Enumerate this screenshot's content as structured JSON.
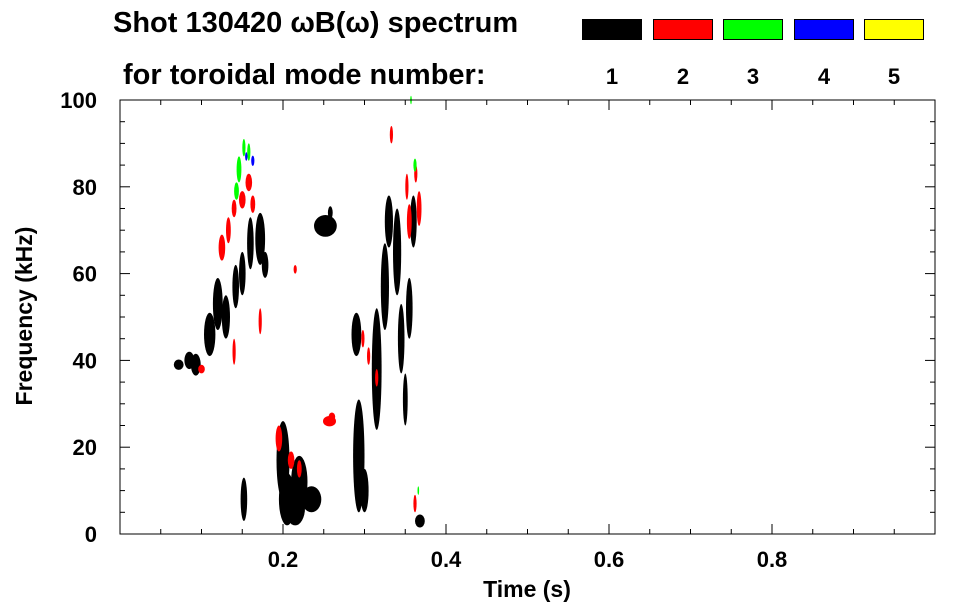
{
  "chart_data": {
    "type": "scatter",
    "title_line1": "Shot 130420 ωB(ω) spectrum",
    "title_line2": "for toroidal mode number:",
    "xlabel": "Time (s)",
    "ylabel": "Frequency (kHz)",
    "xlim": [
      0.0,
      1.0
    ],
    "ylim": [
      0,
      100
    ],
    "x_ticks": [
      0.2,
      0.4,
      0.6,
      0.8
    ],
    "x_tick_labels": [
      "0.2",
      "0.4",
      "0.6",
      "0.8"
    ],
    "y_ticks": [
      0,
      20,
      40,
      60,
      80,
      100
    ],
    "y_tick_labels": [
      "0",
      "20",
      "40",
      "60",
      "80",
      "100"
    ],
    "legend": [
      {
        "label": "1",
        "color": "#000000"
      },
      {
        "label": "2",
        "color": "#ff0000"
      },
      {
        "label": "3",
        "color": "#00ff00"
      },
      {
        "label": "4",
        "color": "#0000ff"
      },
      {
        "label": "5",
        "color": "#ffff00"
      }
    ],
    "series": [
      {
        "name": "n=1",
        "color": "#000000",
        "blobs": [
          [
            0.072,
            39,
            0.006,
            1.2
          ],
          [
            0.085,
            40,
            0.006,
            2
          ],
          [
            0.093,
            39,
            0.006,
            2.5
          ],
          [
            0.11,
            46,
            0.007,
            5
          ],
          [
            0.12,
            53,
            0.006,
            6
          ],
          [
            0.13,
            50,
            0.005,
            5
          ],
          [
            0.142,
            57,
            0.004,
            5
          ],
          [
            0.15,
            60,
            0.004,
            5
          ],
          [
            0.16,
            67,
            0.004,
            6
          ],
          [
            0.172,
            68,
            0.006,
            6
          ],
          [
            0.178,
            62,
            0.004,
            3
          ],
          [
            0.152,
            8,
            0.004,
            5
          ],
          [
            0.2,
            17,
            0.008,
            9
          ],
          [
            0.205,
            8,
            0.01,
            6
          ],
          [
            0.215,
            6,
            0.012,
            4
          ],
          [
            0.22,
            12,
            0.01,
            6
          ],
          [
            0.235,
            8,
            0.012,
            3
          ],
          [
            0.252,
            71,
            0.014,
            2.5
          ],
          [
            0.258,
            74,
            0.003,
            1.5
          ],
          [
            0.29,
            46,
            0.006,
            5
          ],
          [
            0.293,
            18,
            0.007,
            13
          ],
          [
            0.3,
            10,
            0.005,
            5
          ],
          [
            0.315,
            38,
            0.006,
            14
          ],
          [
            0.325,
            57,
            0.005,
            10
          ],
          [
            0.33,
            72,
            0.005,
            6
          ],
          [
            0.34,
            65,
            0.005,
            10
          ],
          [
            0.345,
            45,
            0.004,
            8
          ],
          [
            0.35,
            31,
            0.003,
            6
          ],
          [
            0.355,
            52,
            0.004,
            7
          ],
          [
            0.36,
            72,
            0.004,
            6
          ],
          [
            0.368,
            3,
            0.006,
            1.5
          ]
        ]
      },
      {
        "name": "n=2",
        "color": "#ff0000",
        "blobs": [
          [
            0.1,
            38,
            0.004,
            1
          ],
          [
            0.125,
            66,
            0.004,
            3
          ],
          [
            0.133,
            70,
            0.003,
            3
          ],
          [
            0.14,
            75,
            0.003,
            2
          ],
          [
            0.15,
            77,
            0.004,
            2
          ],
          [
            0.158,
            81,
            0.004,
            2
          ],
          [
            0.163,
            76,
            0.003,
            2
          ],
          [
            0.14,
            42,
            0.002,
            3
          ],
          [
            0.172,
            49,
            0.002,
            3
          ],
          [
            0.195,
            22,
            0.004,
            3
          ],
          [
            0.21,
            17,
            0.004,
            2
          ],
          [
            0.22,
            15,
            0.003,
            2
          ],
          [
            0.257,
            26,
            0.008,
            1.2
          ],
          [
            0.26,
            27,
            0.004,
            1
          ],
          [
            0.215,
            61,
            0.002,
            1
          ],
          [
            0.298,
            45,
            0.002,
            2
          ],
          [
            0.305,
            41,
            0.002,
            2
          ],
          [
            0.315,
            36,
            0.002,
            2
          ],
          [
            0.352,
            80,
            0.002,
            3
          ],
          [
            0.355,
            72,
            0.003,
            4
          ],
          [
            0.363,
            83,
            0.002,
            2
          ],
          [
            0.367,
            75,
            0.003,
            4
          ],
          [
            0.362,
            7,
            0.002,
            2
          ],
          [
            0.333,
            92,
            0.002,
            2
          ]
        ]
      },
      {
        "name": "n=3",
        "color": "#00ff00",
        "blobs": [
          [
            0.146,
            84,
            0.003,
            3
          ],
          [
            0.152,
            89,
            0.002,
            2
          ],
          [
            0.158,
            88,
            0.002,
            2
          ],
          [
            0.143,
            79,
            0.003,
            2
          ],
          [
            0.362,
            85,
            0.002,
            1.5
          ],
          [
            0.357,
            100,
            0.001,
            1
          ],
          [
            0.366,
            10,
            0.001,
            1
          ]
        ]
      },
      {
        "name": "n=4",
        "color": "#0000ff",
        "blobs": [
          [
            0.163,
            86,
            0.002,
            1.2
          ],
          [
            0.155,
            87,
            0.0015,
            1
          ]
        ]
      },
      {
        "name": "n=5",
        "color": "#ffff00",
        "blobs": []
      }
    ]
  }
}
